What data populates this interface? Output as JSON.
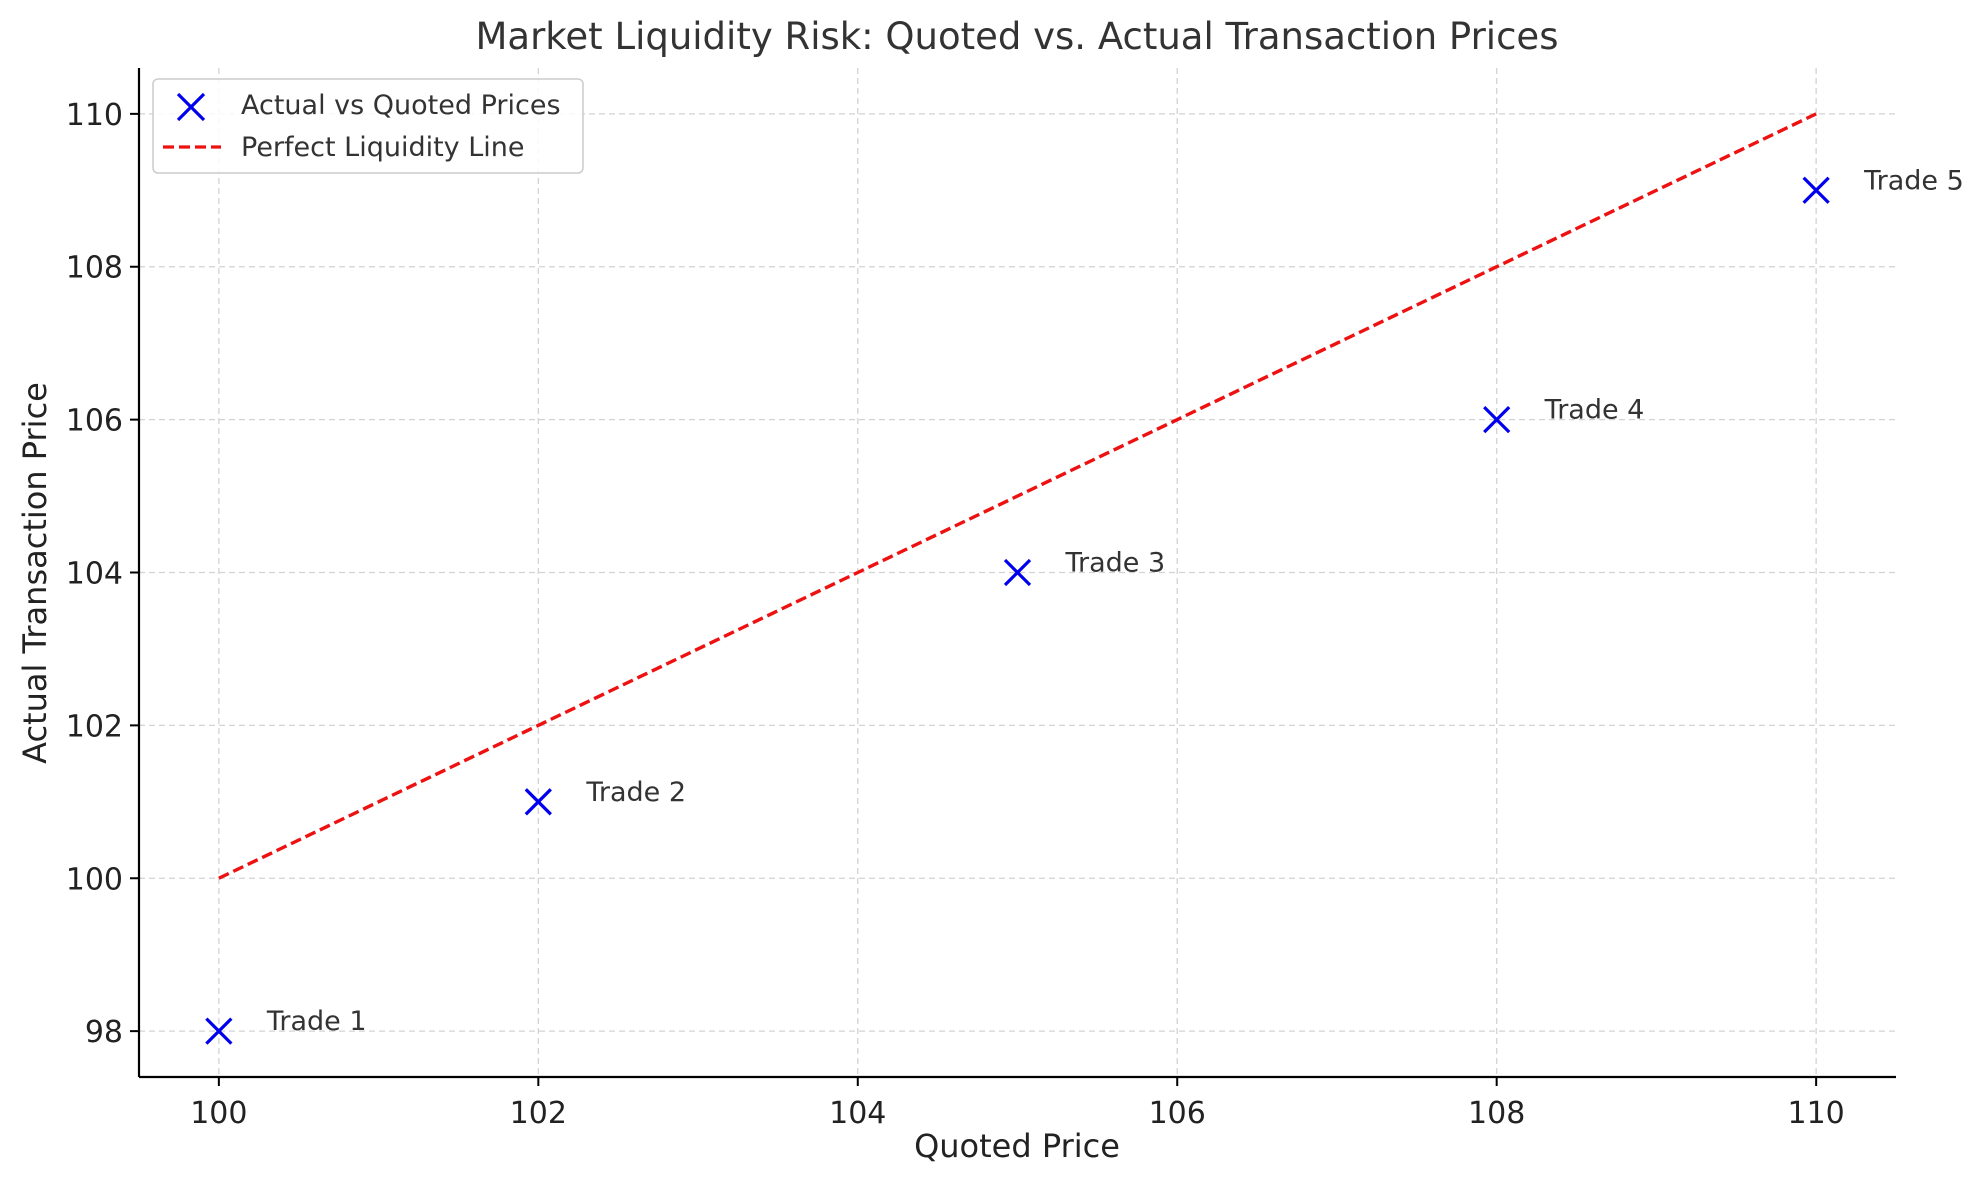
{
  "chart_data": {
    "type": "scatter",
    "title": "Market Liquidity Risk: Quoted vs. Actual Transaction Prices",
    "xlabel": "Quoted Price",
    "ylabel": "Actual Transaction Price",
    "xlim": [
      99.5,
      110.5
    ],
    "ylim": [
      97.4,
      110.6
    ],
    "xticks": [
      "100",
      "102",
      "104",
      "106",
      "108",
      "110"
    ],
    "yticks": [
      "98",
      "100",
      "102",
      "104",
      "106",
      "108",
      "110"
    ],
    "grid": true,
    "legend_position": "top-left",
    "series": [
      {
        "name": "Actual vs Quoted Prices",
        "kind": "scatter",
        "marker": "x",
        "color": "#0000ee",
        "x": [
          100,
          102,
          105,
          108,
          110
        ],
        "y": [
          98,
          101,
          104,
          106,
          109
        ],
        "labels": [
          "Trade 1",
          "Trade 2",
          "Trade 3",
          "Trade 4",
          "Trade 5"
        ]
      },
      {
        "name": "Perfect Liquidity Line",
        "kind": "line",
        "style": "dashed",
        "color": "#ee1111",
        "x": [
          100,
          110
        ],
        "y": [
          100,
          110
        ]
      }
    ]
  }
}
